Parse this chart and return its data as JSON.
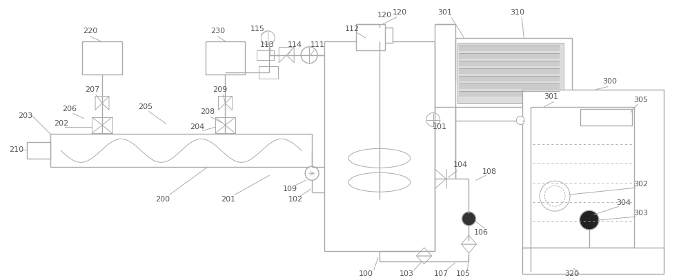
{
  "bg_color": "#ffffff",
  "lc": "#aaaaaa",
  "tc": "#555555",
  "lw": 1.0,
  "tlw": 0.7,
  "fig_w": 10.0,
  "fig_h": 4.03
}
